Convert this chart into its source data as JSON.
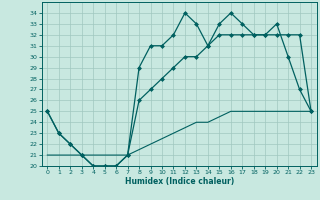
{
  "xlabel": "Humidex (Indice chaleur)",
  "xlim": [
    -0.5,
    23.5
  ],
  "ylim": [
    20,
    35
  ],
  "yticks": [
    20,
    21,
    22,
    23,
    24,
    25,
    26,
    27,
    28,
    29,
    30,
    31,
    32,
    33,
    34
  ],
  "xticks": [
    0,
    1,
    2,
    3,
    4,
    5,
    6,
    7,
    8,
    9,
    10,
    11,
    12,
    13,
    14,
    15,
    16,
    17,
    18,
    19,
    20,
    21,
    22,
    23
  ],
  "bg_color": "#c8e8e0",
  "grid_color": "#a0c8c0",
  "line_color": "#006060",
  "line1_x": [
    0,
    1,
    2,
    3,
    4,
    5,
    6,
    7,
    8,
    9,
    10,
    11,
    12,
    13,
    14,
    15,
    16,
    17,
    18,
    19,
    20,
    21,
    22,
    23
  ],
  "line1_y": [
    25,
    23,
    22,
    21,
    20,
    20,
    20,
    21,
    29,
    31,
    31,
    32,
    34,
    33,
    31,
    33,
    34,
    33,
    32,
    32,
    33,
    30,
    27,
    25
  ],
  "line2_x": [
    0,
    1,
    2,
    3,
    4,
    5,
    6,
    7,
    8,
    9,
    10,
    11,
    12,
    13,
    14,
    15,
    16,
    17,
    18,
    19,
    20,
    21,
    22,
    23
  ],
  "line2_y": [
    25,
    23,
    22,
    21,
    20,
    20,
    20,
    21,
    26,
    27,
    28,
    29,
    30,
    30,
    31,
    32,
    32,
    32,
    32,
    32,
    32,
    32,
    32,
    25
  ],
  "line3_x": [
    0,
    1,
    2,
    3,
    4,
    5,
    6,
    7,
    8,
    9,
    10,
    11,
    12,
    13,
    14,
    15,
    16,
    17,
    18,
    19,
    20,
    21,
    22,
    23
  ],
  "line3_y": [
    21,
    21,
    21,
    21,
    21,
    21,
    21,
    21,
    21.5,
    22,
    22.5,
    23,
    23.5,
    24,
    24,
    24.5,
    25,
    25,
    25,
    25,
    25,
    25,
    25,
    25
  ]
}
